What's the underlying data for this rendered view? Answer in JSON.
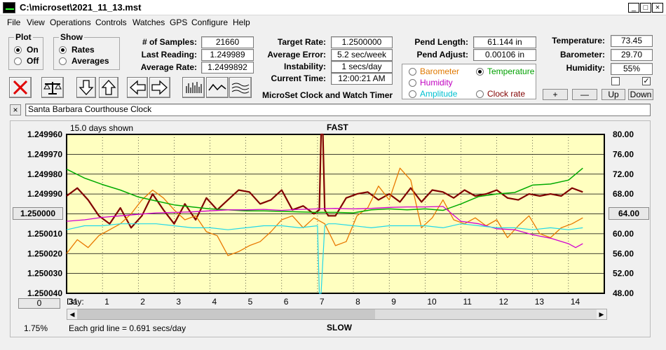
{
  "window": {
    "title": "C:\\microset\\2021_11_13.mst",
    "buttons": [
      "_",
      "□",
      "×"
    ]
  },
  "menu": [
    "File",
    "View",
    "Operations",
    "Controls",
    "Watches",
    "GPS",
    "Configure",
    "Help"
  ],
  "plot_group": {
    "title": "Plot",
    "options": [
      "On",
      "Off"
    ],
    "selected": "On"
  },
  "show_group": {
    "title": "Show",
    "options": [
      "Rates",
      "Averages"
    ],
    "selected": "Rates"
  },
  "stats": [
    {
      "label": "# of Samples:",
      "value": "21660"
    },
    {
      "label": "Last Reading:",
      "value": "1.249989"
    },
    {
      "label": "Average Rate:",
      "value": "1.2499892"
    }
  ],
  "rates": [
    {
      "label": "Target Rate:",
      "value": "1.2500000"
    },
    {
      "label": "Average Error:",
      "value": "5.2 sec/week"
    },
    {
      "label": "Instability:",
      "value": "1 secs/day"
    },
    {
      "label": "Current Time:",
      "value": "12:00:21 AM"
    }
  ],
  "app_caption": "MicroSet Clock and Watch Timer",
  "pendulum": [
    {
      "label": "Pend Length:",
      "value": "61.144 in"
    },
    {
      "label": "Pend Adjust:",
      "value": "0.00106 in"
    }
  ],
  "sensor_select": {
    "options": [
      {
        "label": "Barometer",
        "color": "#e07800",
        "selected": false
      },
      {
        "label": "Temperature",
        "color": "#00a000",
        "selected": true
      },
      {
        "label": "Humidity",
        "color": "#c000c0",
        "selected": false
      },
      {
        "label": "Clock rate",
        "color": "#800000",
        "selected": false
      },
      {
        "label": "Amplitude",
        "color": "#00c0d0",
        "selected": false
      }
    ]
  },
  "environment": [
    {
      "label": "Temperature:",
      "value": "73.45"
    },
    {
      "label": "Barometer:",
      "value": "29.70"
    },
    {
      "label": "Humidity:",
      "value": "55%"
    }
  ],
  "checkboxes": [
    {
      "checked": false
    },
    {
      "checked": true
    }
  ],
  "adjust_buttons": [
    "+",
    "—",
    "Up",
    "Down"
  ],
  "clock_name": {
    "close": "×",
    "value": "Santa Barbara Courthouse Clock"
  },
  "chart_data": {
    "type": "line",
    "title": "FAST",
    "bottom_label": "SLOW",
    "days_shown": "15.0 days shown",
    "grid_note": "Each grid line = 0.691 secs/day",
    "zoom": "1.75%",
    "left_button": "1.250000",
    "right_button": "64.00",
    "scroll_button": "0",
    "x_prefix": "Day:",
    "x_ticks": [
      "31",
      "1",
      "2",
      "3",
      "4",
      "5",
      "6",
      "7",
      "8",
      "9",
      "10",
      "11",
      "12",
      "13",
      "14"
    ],
    "y_left_ticks": [
      "1.249960",
      "1.249970",
      "1.249980",
      "1.249990",
      "1.250000",
      "1.250010",
      "1.250020",
      "1.250030",
      "1.250040"
    ],
    "y_right_ticks": [
      "80.00",
      "76.00",
      "72.00",
      "68.00",
      "64.00",
      "60.00",
      "56.00",
      "52.00",
      "48.00"
    ],
    "ylim_left": [
      1.24996,
      1.25004
    ],
    "ylim_right": [
      48,
      80
    ],
    "xlim": [
      0,
      15
    ],
    "series": [
      {
        "name": "Clock rate",
        "color": "#800000",
        "axis": "left",
        "width": 2.2,
        "x": [
          0,
          0.3,
          0.6,
          0.9,
          1.2,
          1.5,
          1.8,
          2.1,
          2.4,
          2.7,
          3.0,
          3.3,
          3.6,
          3.9,
          4.2,
          4.5,
          4.8,
          5.1,
          5.4,
          5.7,
          6.0,
          6.3,
          6.6,
          6.9,
          7.05,
          7.1,
          7.15,
          7.2,
          7.3,
          7.5,
          7.8,
          8.1,
          8.4,
          8.7,
          9.0,
          9.3,
          9.6,
          9.9,
          10.2,
          10.5,
          10.8,
          11.1,
          11.4,
          11.7,
          12.0,
          12.3,
          12.6,
          12.9,
          13.2,
          13.5,
          13.8,
          14.1,
          14.4
        ],
        "y": [
          1.249991,
          1.249987,
          1.249993,
          1.250001,
          1.250005,
          1.249997,
          1.250007,
          1.250001,
          1.24999,
          1.249998,
          1.250005,
          1.249995,
          1.250003,
          1.249992,
          1.249998,
          1.249993,
          1.249988,
          1.249989,
          1.249995,
          1.249993,
          1.249988,
          1.249998,
          1.249996,
          1.25,
          1.249998,
          1.24996,
          1.24996,
          1.249998,
          1.250001,
          1.250001,
          1.249992,
          1.24999,
          1.249989,
          1.249993,
          1.24999,
          1.249994,
          1.249987,
          1.249994,
          1.249988,
          1.249989,
          1.249992,
          1.249988,
          1.249991,
          1.24999,
          1.249988,
          1.249992,
          1.249993,
          1.24999,
          1.249991,
          1.24999,
          1.249991,
          1.249987,
          1.249989
        ]
      },
      {
        "name": "Barometer",
        "color": "#e87800",
        "axis": "left",
        "width": 1.3,
        "x": [
          0,
          0.3,
          0.6,
          0.9,
          1.2,
          1.5,
          1.8,
          2.1,
          2.4,
          2.7,
          3.0,
          3.3,
          3.6,
          3.9,
          4.2,
          4.5,
          4.8,
          5.1,
          5.4,
          5.7,
          6.0,
          6.3,
          6.6,
          6.9,
          7.2,
          7.5,
          7.8,
          8.1,
          8.4,
          8.7,
          9.0,
          9.3,
          9.6,
          9.9,
          10.2,
          10.5,
          10.8,
          11.1,
          11.4,
          11.7,
          12.0,
          12.3,
          12.6,
          12.9,
          13.2,
          13.5,
          13.8,
          14.1,
          14.4
        ],
        "y": [
          1.25002,
          1.250013,
          1.250017,
          1.250011,
          1.250008,
          1.250005,
          1.25,
          1.249993,
          1.249988,
          1.249992,
          1.249998,
          1.250003,
          1.250001,
          1.250009,
          1.250011,
          1.250021,
          1.250019,
          1.250016,
          1.250014,
          1.250009,
          1.250003,
          1.250001,
          1.250007,
          1.250002,
          1.250005,
          1.250016,
          1.250014,
          1.250001,
          1.249997,
          1.249986,
          1.249993,
          1.249977,
          1.249983,
          1.250007,
          1.250002,
          1.249993,
          1.250003,
          1.250005,
          1.250002,
          1.250006,
          1.250003,
          1.250012,
          1.250006,
          1.250001,
          1.25001,
          1.250012,
          1.250007,
          1.250005,
          1.250002
        ]
      },
      {
        "name": "Temperature",
        "color": "#00aa00",
        "axis": "right",
        "width": 1.5,
        "x": [
          0,
          0.5,
          1,
          1.5,
          2,
          2.5,
          3,
          3.5,
          4,
          4.5,
          5,
          5.5,
          6,
          6.5,
          7,
          7.5,
          8,
          8.5,
          9,
          9.5,
          10,
          10.5,
          11,
          11.5,
          12,
          12.5,
          13,
          13.5,
          14,
          14.2,
          14.4
        ],
        "y": [
          73.0,
          71.2,
          69.9,
          68.8,
          67.4,
          66.6,
          65.8,
          65.4,
          65.0,
          64.8,
          64.6,
          64.6,
          64.5,
          64.4,
          64.3,
          64.3,
          64.2,
          64.8,
          65.0,
          64.8,
          65.0,
          64.7,
          66.0,
          67.5,
          68.0,
          68.3,
          69.8,
          70.0,
          70.8,
          72.0,
          73.2
        ]
      },
      {
        "name": "Humidity",
        "color": "#d000d0",
        "axis": "right",
        "width": 1.3,
        "x": [
          0,
          0.5,
          1,
          1.5,
          2,
          2.5,
          3,
          3.5,
          4,
          4.5,
          5,
          5.5,
          6,
          6.5,
          7,
          7.5,
          8,
          8.5,
          9,
          9.5,
          10,
          10.5,
          11,
          11.5,
          12,
          12.5,
          13,
          13.5,
          14,
          14.2,
          14.4
        ],
        "y": [
          62.5,
          62.8,
          63.3,
          63.6,
          63.9,
          64.2,
          64.3,
          64.4,
          64.6,
          64.8,
          64.8,
          64.9,
          64.7,
          64.9,
          65.0,
          65.1,
          65.0,
          65.1,
          65.3,
          65.4,
          65.4,
          65.5,
          62.5,
          62.0,
          61.0,
          60.8,
          59.8,
          59.1,
          58.0,
          57.2,
          58.0
        ]
      },
      {
        "name": "Amplitude",
        "color": "#22d8e8",
        "axis": "left",
        "width": 1.2,
        "x": [
          0,
          0.5,
          1,
          1.5,
          2,
          2.5,
          3,
          3.5,
          4,
          4.5,
          5,
          5.5,
          6,
          6.5,
          7,
          7.05,
          7.1,
          7.2,
          7.3,
          7.5,
          8,
          8.5,
          9,
          9.5,
          10,
          10.5,
          11,
          11.5,
          12,
          12.5,
          13,
          13.5,
          14,
          14.4
        ],
        "y": [
          1.250008,
          1.250006,
          1.250006,
          1.250005,
          1.250005,
          1.250005,
          1.250006,
          1.250007,
          1.250007,
          1.250008,
          1.250007,
          1.250006,
          1.250006,
          1.250007,
          1.250006,
          1.25004,
          1.25004,
          1.250006,
          1.250005,
          1.250005,
          1.250006,
          1.250007,
          1.250006,
          1.250006,
          1.250006,
          1.250007,
          1.250005,
          1.250006,
          1.250007,
          1.250007,
          1.250008,
          1.250007,
          1.250008,
          1.250007
        ]
      }
    ]
  }
}
